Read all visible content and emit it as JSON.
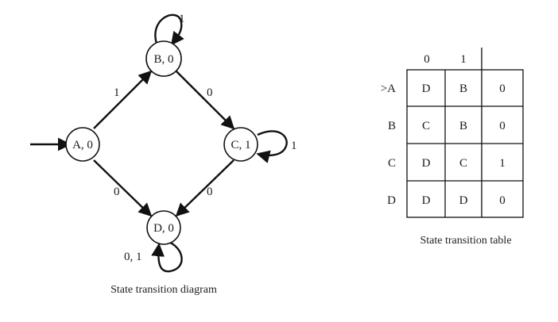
{
  "diagram": {
    "caption": "State transition diagram",
    "nodes": {
      "A": "A, 0",
      "B": "B, 0",
      "C": "C, 1",
      "D": "D, 0"
    },
    "edges": {
      "A_to_B": "1",
      "B_to_C": "0",
      "A_to_D": "0",
      "C_to_D": "0",
      "B_loop": "1",
      "C_loop": "1",
      "D_loop": "0, 1"
    }
  },
  "table": {
    "caption": "State transition table",
    "headers": [
      "0",
      "1"
    ],
    "rows": [
      {
        "state": ">A",
        "on0": "D",
        "on1": "B",
        "output": "0"
      },
      {
        "state": "B",
        "on0": "C",
        "on1": "B",
        "output": "0"
      },
      {
        "state": "C",
        "on0": "D",
        "on1": "C",
        "output": "1"
      },
      {
        "state": "D",
        "on0": "D",
        "on1": "D",
        "output": "0"
      }
    ]
  }
}
